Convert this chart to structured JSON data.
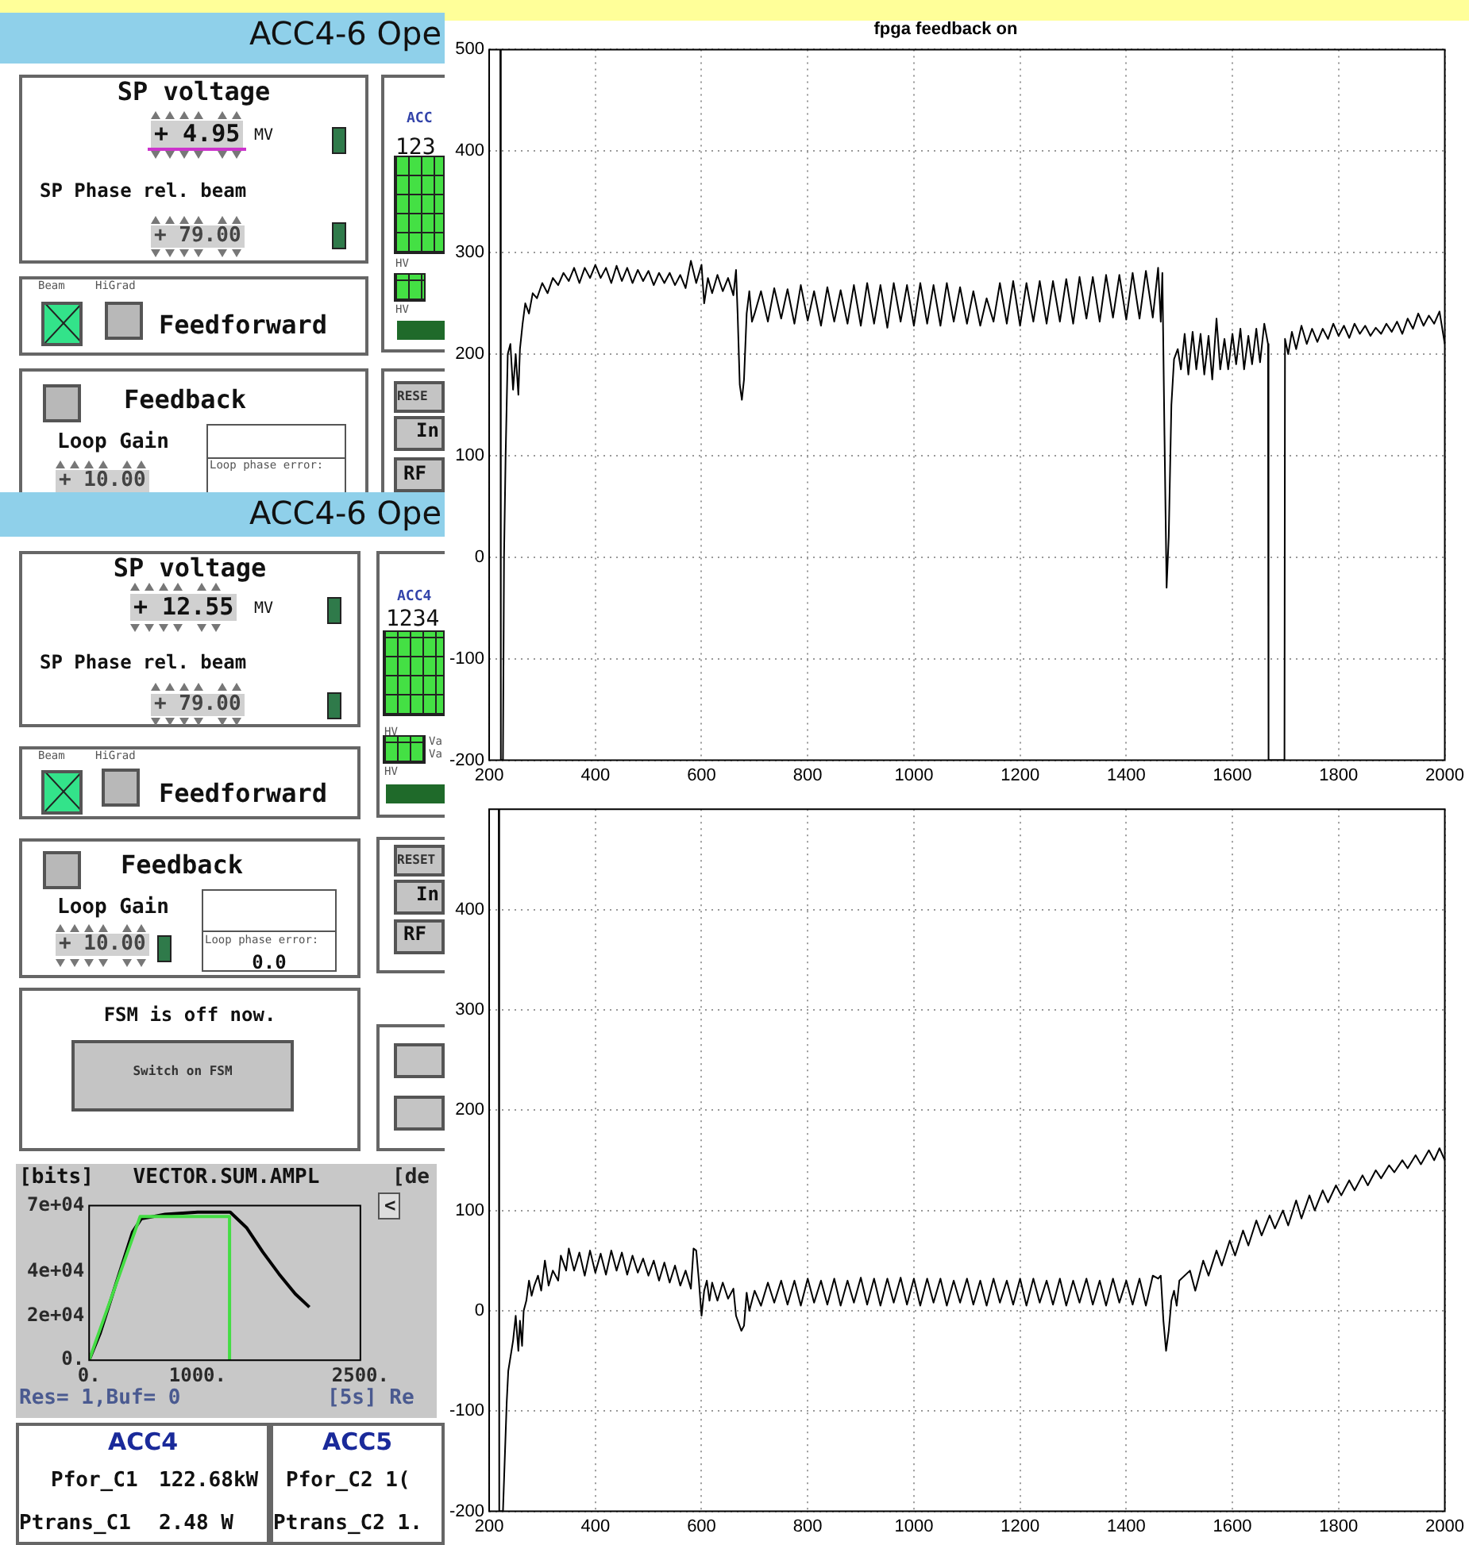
{
  "chart_data": [
    {
      "type": "other",
      "annotations": [
        "ACC4-6 Ope",
        "SP voltage",
        "+ 4.95",
        "MV",
        "SP Phase rel. beam",
        "+ 79.00",
        "Beam",
        "HiGrad",
        "Feedforward",
        "Feedback",
        "Loop Gain",
        "+ 10.00",
        "Loop phase error:",
        "ACC",
        "123",
        "RESE",
        "In",
        "RF",
        "ACC4-6 Ope",
        "SP voltage",
        "+ 12.55",
        "MV",
        "SP Phase rel. beam",
        "+ 79.00",
        "Beam",
        "HiGrad",
        "Feedforward",
        "Feedback",
        "Loop Gain",
        "+ 10.00",
        "Loop phase error:",
        "0.0",
        "ACC4",
        "1234",
        "HV",
        "Va",
        "Va",
        "HV",
        "RESET",
        "In",
        "RF",
        "FSM is off now.",
        "Switch on FSM",
        "ACC4",
        "Pfor_C1",
        "122.68kW",
        "Ptrans_C1",
        "2.48 W",
        "ACC5",
        "Pfor_C2 1(",
        "Ptrans_C2 1.",
        "HV",
        "HV"
      ]
    },
    {
      "type": "line",
      "title": "VECTOR.SUM.AMPL",
      "ylabel": "[bits]",
      "annotations": [
        "[de",
        "Res= 1,Buf= 0",
        "[5s] Re",
        "<"
      ],
      "xlim": [
        0,
        2500
      ],
      "xticks": [
        {
          "value": 0,
          "label": "0."
        },
        {
          "value": 1000,
          "label": "1000."
        },
        {
          "value": 2500,
          "label": "2500."
        }
      ],
      "ylim": [
        0,
        70000
      ],
      "yticks": [
        {
          "value": 0,
          "label": "0."
        },
        {
          "value": 20000,
          "label": "2e+04"
        },
        {
          "value": 40000,
          "label": "4e+04"
        },
        {
          "value": 70000,
          "label": "7e+04"
        }
      ],
      "series": [
        {
          "color": "#44dd44",
          "x": [
            0,
            470,
            1294,
            1294
          ],
          "values": [
            0,
            65000,
            65000,
            0
          ]
        },
        {
          "color": "#000000",
          "x": [
            0,
            100,
            250,
            400,
            480,
            700,
            1000,
            1300,
            1450,
            1600,
            1750,
            1900,
            2030
          ],
          "values": [
            0,
            12000,
            35000,
            58000,
            64000,
            66000,
            67000,
            67000,
            60000,
            49000,
            39000,
            30000,
            24000
          ]
        }
      ]
    },
    {
      "type": "line",
      "title": "fpga feedback on",
      "xlim": [
        200,
        2000
      ],
      "xticks": [
        200,
        400,
        600,
        800,
        1000,
        1200,
        1400,
        1600,
        1800,
        2000
      ],
      "ylim": [
        -200,
        500
      ],
      "yticks": [
        -200,
        -100,
        0,
        100,
        200,
        300,
        400,
        500
      ],
      "grid": true,
      "series": [
        {
          "color": "#000000",
          "x": [
            221,
            222,
            226,
            228,
            231,
            235,
            240,
            245,
            250,
            255,
            258,
            263,
            268,
            275,
            282,
            290,
            300,
            310,
            320,
            330,
            340,
            350,
            360,
            370,
            380,
            390,
            400,
            410,
            420,
            430,
            440,
            450,
            460,
            470,
            480,
            490,
            500,
            510,
            520,
            530,
            540,
            550,
            560,
            570,
            580,
            590,
            600,
            605,
            612,
            620,
            630,
            640,
            650,
            660,
            665,
            668,
            672,
            676,
            680,
            685,
            690,
            695,
            700,
            712,
            725,
            737,
            750,
            762,
            775,
            787,
            800,
            812,
            825,
            837,
            850,
            862,
            875,
            887,
            900,
            912,
            925,
            937,
            950,
            962,
            975,
            987,
            1000,
            1012,
            1025,
            1037,
            1050,
            1062,
            1075,
            1087,
            1100,
            1112,
            1125,
            1137,
            1150,
            1162,
            1175,
            1187,
            1200,
            1212,
            1225,
            1237,
            1250,
            1262,
            1275,
            1287,
            1300,
            1312,
            1325,
            1337,
            1350,
            1362,
            1375,
            1387,
            1400,
            1412,
            1425,
            1437,
            1450,
            1460,
            1465,
            1468,
            1472,
            1476,
            1480,
            1485,
            1490,
            1497,
            1503,
            1510,
            1517,
            1525,
            1532,
            1540,
            1547,
            1555,
            1562,
            1570,
            1577,
            1585,
            1592,
            1600,
            1607,
            1615,
            1622,
            1630,
            1637,
            1645,
            1652,
            1660,
            1667,
            1668,
            1698,
            1699,
            1705,
            1712,
            1720,
            1730,
            1740,
            1750,
            1760,
            1770,
            1780,
            1790,
            1800,
            1810,
            1820,
            1830,
            1840,
            1850,
            1860,
            1870,
            1880,
            1890,
            1900,
            1910,
            1920,
            1930,
            1940,
            1950,
            1960,
            1970,
            1980,
            1990,
            2000
          ],
          "values": [
            500,
            -200,
            -200,
            0,
            100,
            200,
            210,
            165,
            200,
            160,
            205,
            230,
            250,
            240,
            260,
            255,
            270,
            260,
            275,
            268,
            280,
            272,
            285,
            270,
            285,
            275,
            288,
            275,
            285,
            270,
            287,
            272,
            285,
            270,
            283,
            272,
            282,
            268,
            280,
            270,
            280,
            268,
            278,
            265,
            292,
            270,
            288,
            250,
            275,
            260,
            278,
            262,
            275,
            258,
            283,
            240,
            170,
            155,
            175,
            240,
            262,
            232,
            240,
            262,
            232,
            265,
            235,
            264,
            230,
            268,
            233,
            262,
            228,
            266,
            232,
            263,
            230,
            268,
            228,
            270,
            230,
            268,
            226,
            270,
            232,
            268,
            228,
            270,
            230,
            268,
            228,
            270,
            232,
            266,
            230,
            262,
            228,
            255,
            232,
            270,
            230,
            272,
            228,
            270,
            232,
            272,
            230,
            272,
            232,
            274,
            230,
            276,
            235,
            276,
            232,
            278,
            236,
            278,
            234,
            280,
            235,
            282,
            236,
            285,
            232,
            280,
            120,
            -30,
            20,
            150,
            195,
            205,
            185,
            220,
            180,
            222,
            185,
            220,
            180,
            218,
            175,
            235,
            185,
            215,
            185,
            220,
            190,
            225,
            185,
            218,
            190,
            225,
            192,
            230,
            210,
            -200,
            -200,
            215,
            200,
            222,
            205,
            228,
            210,
            225,
            212,
            225,
            215,
            230,
            218,
            228,
            216,
            230,
            220,
            228,
            218,
            226,
            220,
            230,
            222,
            232,
            220,
            235,
            225,
            240,
            228,
            238,
            230,
            242,
            210
          ]
        }
      ]
    },
    {
      "type": "line",
      "xlim": [
        200,
        2000
      ],
      "xticks": [
        200,
        400,
        600,
        800,
        1000,
        1200,
        1400,
        1600,
        1800,
        2000
      ],
      "ylim": [
        -200,
        500
      ],
      "yticks": [
        -200,
        -100,
        0,
        100,
        200,
        300,
        400
      ],
      "grid": true,
      "series": [
        {
          "color": "#000000",
          "x": [
            218,
            219,
            226,
            233,
            236,
            245,
            250,
            255,
            258,
            262,
            265,
            270,
            275,
            280,
            285,
            292,
            298,
            305,
            312,
            320,
            330,
            335,
            345,
            350,
            360,
            370,
            380,
            390,
            400,
            410,
            420,
            430,
            440,
            450,
            460,
            470,
            480,
            490,
            500,
            510,
            520,
            530,
            540,
            550,
            560,
            570,
            580,
            585,
            590,
            595,
            600,
            605,
            610,
            615,
            620,
            630,
            640,
            650,
            660,
            665,
            675,
            680,
            685,
            690,
            700,
            712,
            725,
            737,
            750,
            762,
            775,
            787,
            800,
            812,
            825,
            837,
            850,
            862,
            875,
            887,
            900,
            912,
            925,
            937,
            950,
            962,
            975,
            987,
            1000,
            1012,
            1025,
            1037,
            1050,
            1062,
            1075,
            1087,
            1100,
            1112,
            1125,
            1137,
            1150,
            1162,
            1175,
            1187,
            1200,
            1212,
            1225,
            1237,
            1250,
            1262,
            1275,
            1287,
            1300,
            1312,
            1325,
            1337,
            1350,
            1362,
            1375,
            1387,
            1400,
            1412,
            1425,
            1437,
            1450,
            1460,
            1465,
            1470,
            1475,
            1480,
            1485,
            1490,
            1495,
            1500,
            1520,
            1530,
            1545,
            1555,
            1570,
            1580,
            1595,
            1605,
            1620,
            1630,
            1645,
            1655,
            1670,
            1680,
            1695,
            1705,
            1720,
            1730,
            1745,
            1755,
            1770,
            1780,
            1795,
            1805,
            1820,
            1830,
            1845,
            1855,
            1870,
            1880,
            1895,
            1905,
            1920,
            1930,
            1945,
            1955,
            1970,
            1980,
            1990,
            2000
          ],
          "values": [
            500,
            -200,
            -200,
            -92,
            -60,
            -30,
            -5,
            -40,
            -10,
            -35,
            0,
            10,
            30,
            15,
            25,
            35,
            20,
            50,
            25,
            40,
            30,
            55,
            40,
            62,
            40,
            58,
            35,
            60,
            38,
            57,
            36,
            60,
            40,
            58,
            36,
            55,
            38,
            52,
            35,
            50,
            30,
            48,
            28,
            45,
            25,
            40,
            22,
            62,
            60,
            30,
            -5,
            20,
            30,
            10,
            28,
            10,
            28,
            12,
            22,
            -5,
            -20,
            -15,
            18,
            0,
            20,
            5,
            28,
            8,
            30,
            6,
            30,
            5,
            32,
            8,
            30,
            6,
            32,
            5,
            30,
            8,
            33,
            6,
            32,
            5,
            32,
            8,
            33,
            6,
            32,
            5,
            32,
            8,
            32,
            5,
            30,
            8,
            32,
            6,
            30,
            5,
            32,
            8,
            30,
            6,
            32,
            5,
            32,
            8,
            30,
            6,
            32,
            5,
            30,
            8,
            32,
            6,
            30,
            5,
            32,
            8,
            30,
            6,
            32,
            5,
            35,
            32,
            35,
            -10,
            -40,
            -20,
            10,
            20,
            5,
            30,
            40,
            20,
            50,
            35,
            60,
            45,
            70,
            55,
            80,
            65,
            90,
            75,
            95,
            82,
            100,
            85,
            110,
            92,
            115,
            100,
            120,
            108,
            125,
            115,
            130,
            120,
            135,
            125,
            140,
            132,
            145,
            138,
            150,
            142,
            155,
            146,
            160,
            150,
            162,
            150
          ]
        }
      ]
    }
  ]
}
